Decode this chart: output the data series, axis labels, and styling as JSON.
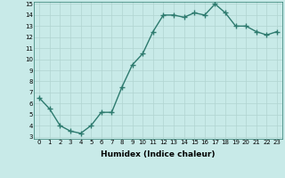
{
  "x": [
    0,
    1,
    2,
    3,
    4,
    5,
    6,
    7,
    8,
    9,
    10,
    11,
    12,
    13,
    14,
    15,
    16,
    17,
    18,
    19,
    20,
    21,
    22,
    23
  ],
  "y": [
    6.5,
    5.5,
    4.0,
    3.5,
    3.3,
    4.0,
    5.2,
    5.2,
    7.5,
    9.5,
    10.5,
    12.5,
    14.0,
    14.0,
    13.8,
    14.2,
    14.0,
    15.0,
    14.2,
    13.0,
    13.0,
    12.5,
    12.2,
    12.5
  ],
  "xlabel": "Humidex (Indice chaleur)",
  "ylim_min": 3,
  "ylim_max": 15,
  "xlim_min": -0.5,
  "xlim_max": 23.5,
  "yticks": [
    3,
    4,
    5,
    6,
    7,
    8,
    9,
    10,
    11,
    12,
    13,
    14,
    15
  ],
  "xticks": [
    0,
    1,
    2,
    3,
    4,
    5,
    6,
    7,
    8,
    9,
    10,
    11,
    12,
    13,
    14,
    15,
    16,
    17,
    18,
    19,
    20,
    21,
    22,
    23
  ],
  "line_color": "#2d7a6e",
  "marker_color": "#2d7a6e",
  "bg_color": "#c8eae8",
  "grid_color": "#b0d4d0",
  "tick_fontsize": 5,
  "xlabel_fontsize": 6.5,
  "linewidth": 1.0,
  "markersize": 2.0
}
